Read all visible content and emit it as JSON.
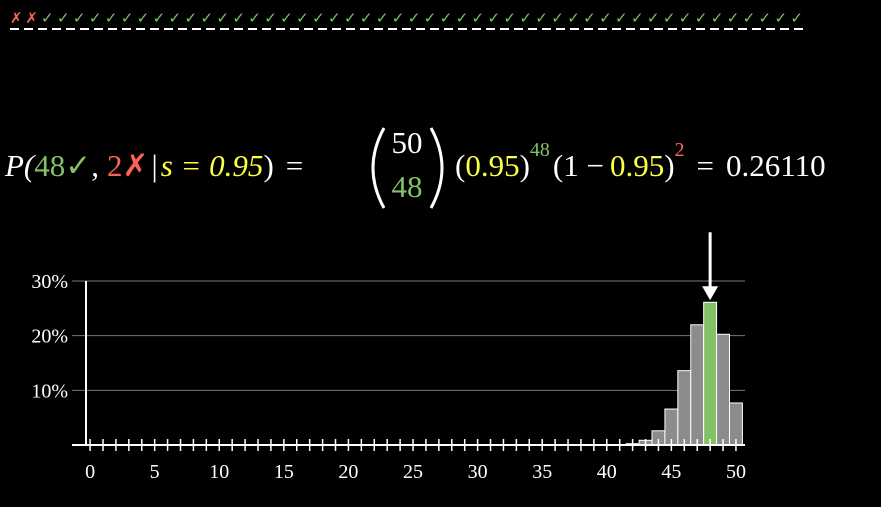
{
  "header": {
    "wrong_marks": "✗✗",
    "right_marks": "✓✓✓✓✓✓✓✓✓✓✓✓✓✓✓✓✓✓✓✓✓✓✓✓✓✓✓✓✓✓✓✓✓✓✓✓✓✓✓✓✓✓✓✓✓✓✓✓"
  },
  "formula": {
    "p_open": "P(",
    "successes": "48",
    "check": "✓",
    "comma": ",",
    "failures": "2",
    "cross": "✗",
    "given": "|",
    "condition": "s = 0.95",
    "p_close": ")",
    "equals": "=",
    "binom_n": "50",
    "binom_k": "48",
    "pow_open": "(",
    "pow_base": "0.95",
    "pow_close": ")",
    "pow_exp": "48",
    "comp_open": "(1 −",
    "comp_base": "0.95",
    "comp_close": ")",
    "comp_exp": "2",
    "equals2": "=",
    "result": "0.26110"
  },
  "chart_data": {
    "type": "bar",
    "x": [
      0,
      1,
      2,
      3,
      4,
      5,
      6,
      7,
      8,
      9,
      10,
      11,
      12,
      13,
      14,
      15,
      16,
      17,
      18,
      19,
      20,
      21,
      22,
      23,
      24,
      25,
      26,
      27,
      28,
      29,
      30,
      31,
      32,
      33,
      34,
      35,
      36,
      37,
      38,
      39,
      40,
      41,
      42,
      43,
      44,
      45,
      46,
      47,
      48,
      49,
      50
    ],
    "values": [
      0,
      0,
      0,
      0,
      0,
      0,
      0,
      0,
      0,
      0,
      0,
      0,
      0,
      0,
      0,
      0,
      0,
      0,
      0,
      0,
      0,
      0,
      0,
      0,
      0,
      0,
      0,
      0,
      0,
      0,
      0,
      0,
      0,
      0,
      0,
      0,
      0,
      0,
      0,
      0,
      0.01,
      0.06,
      0.24,
      0.86,
      2.6,
      6.58,
      13.6,
      21.99,
      26.11,
      20.25,
      7.69
    ],
    "color": "#8c8c8c",
    "highlight_index": 48,
    "highlight_color": "#83c167",
    "xlim": [
      -1.4,
      50.7
    ],
    "xticks": [
      0,
      5,
      10,
      15,
      20,
      25,
      30,
      35,
      40,
      45,
      50
    ],
    "xminor": [
      0,
      1,
      2,
      3,
      4,
      5,
      6,
      7,
      8,
      9,
      10,
      11,
      12,
      13,
      14,
      15,
      16,
      17,
      18,
      19,
      20,
      21,
      22,
      23,
      24,
      25,
      26,
      27,
      28,
      29,
      30,
      31,
      32,
      33,
      34,
      35,
      36,
      37,
      38,
      39,
      40,
      41,
      42,
      43,
      44,
      45,
      46,
      47,
      48,
      49,
      50
    ],
    "ylim": [
      0,
      30
    ],
    "yticks": [
      {
        "value": 10,
        "label": "10%"
      },
      {
        "value": 20,
        "label": "20%"
      },
      {
        "value": 30,
        "label": "30%"
      }
    ],
    "grid": true
  }
}
